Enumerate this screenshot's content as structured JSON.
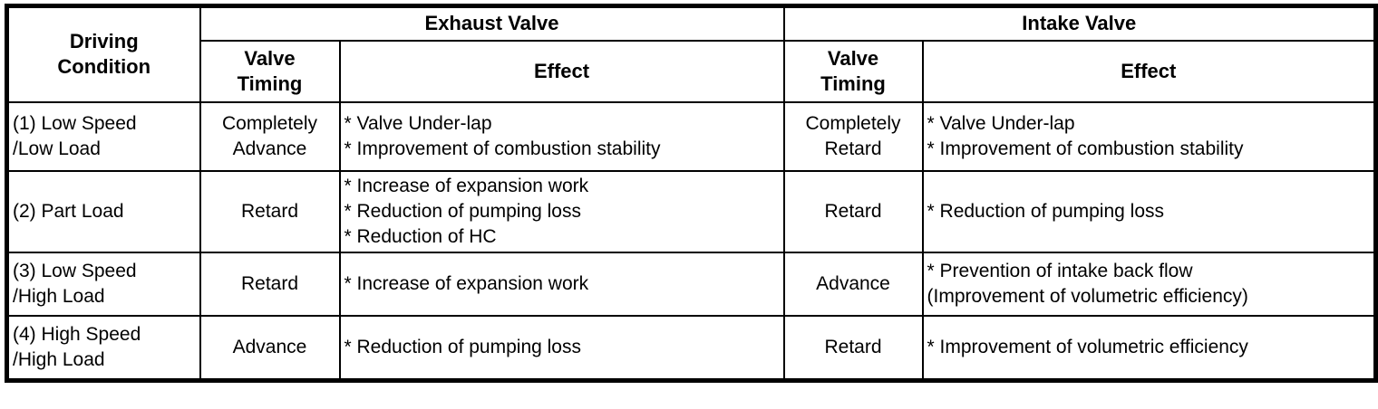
{
  "header": {
    "driving_condition_lines": [
      "Driving",
      "Condition"
    ],
    "exhaust_valve": "Exhaust Valve",
    "intake_valve": "Intake Valve",
    "valve_timing_lines": [
      "Valve",
      "Timing"
    ],
    "effect": "Effect"
  },
  "rows": [
    {
      "condition_lines": [
        "(1) Low Speed",
        "/Low Load"
      ],
      "exhaust": {
        "timing_lines": [
          "Completely",
          "Advance"
        ],
        "effect_lines": [
          "* Valve Under-lap",
          "* Improvement of combustion stability"
        ]
      },
      "intake": {
        "timing_lines": [
          "Completely",
          "Retard"
        ],
        "effect_lines": [
          "* Valve Under-lap",
          "* Improvement of combustion stability"
        ]
      }
    },
    {
      "condition_lines": [
        "(2) Part Load"
      ],
      "exhaust": {
        "timing_lines": [
          "Retard"
        ],
        "effect_lines": [
          "* Increase of expansion work",
          "* Reduction of pumping loss",
          "* Reduction of HC"
        ]
      },
      "intake": {
        "timing_lines": [
          "Retard"
        ],
        "effect_lines": [
          "* Reduction of pumping loss"
        ]
      }
    },
    {
      "condition_lines": [
        "(3) Low Speed",
        "/High Load"
      ],
      "exhaust": {
        "timing_lines": [
          "Retard"
        ],
        "effect_lines": [
          "* Increase of expansion work"
        ]
      },
      "intake": {
        "timing_lines": [
          "Advance"
        ],
        "effect_lines": [
          "* Prevention of intake back flow",
          "(Improvement of volumetric efficiency)"
        ]
      }
    },
    {
      "condition_lines": [
        "(4) High Speed",
        "/High Load"
      ],
      "exhaust": {
        "timing_lines": [
          "Advance"
        ],
        "effect_lines": [
          "* Reduction of pumping loss"
        ]
      },
      "intake": {
        "timing_lines": [
          "Retard"
        ],
        "effect_lines": [
          "* Improvement of volumetric efficiency"
        ]
      }
    }
  ],
  "colors": {
    "border": "#000000",
    "background": "#ffffff",
    "text": "#000000"
  }
}
